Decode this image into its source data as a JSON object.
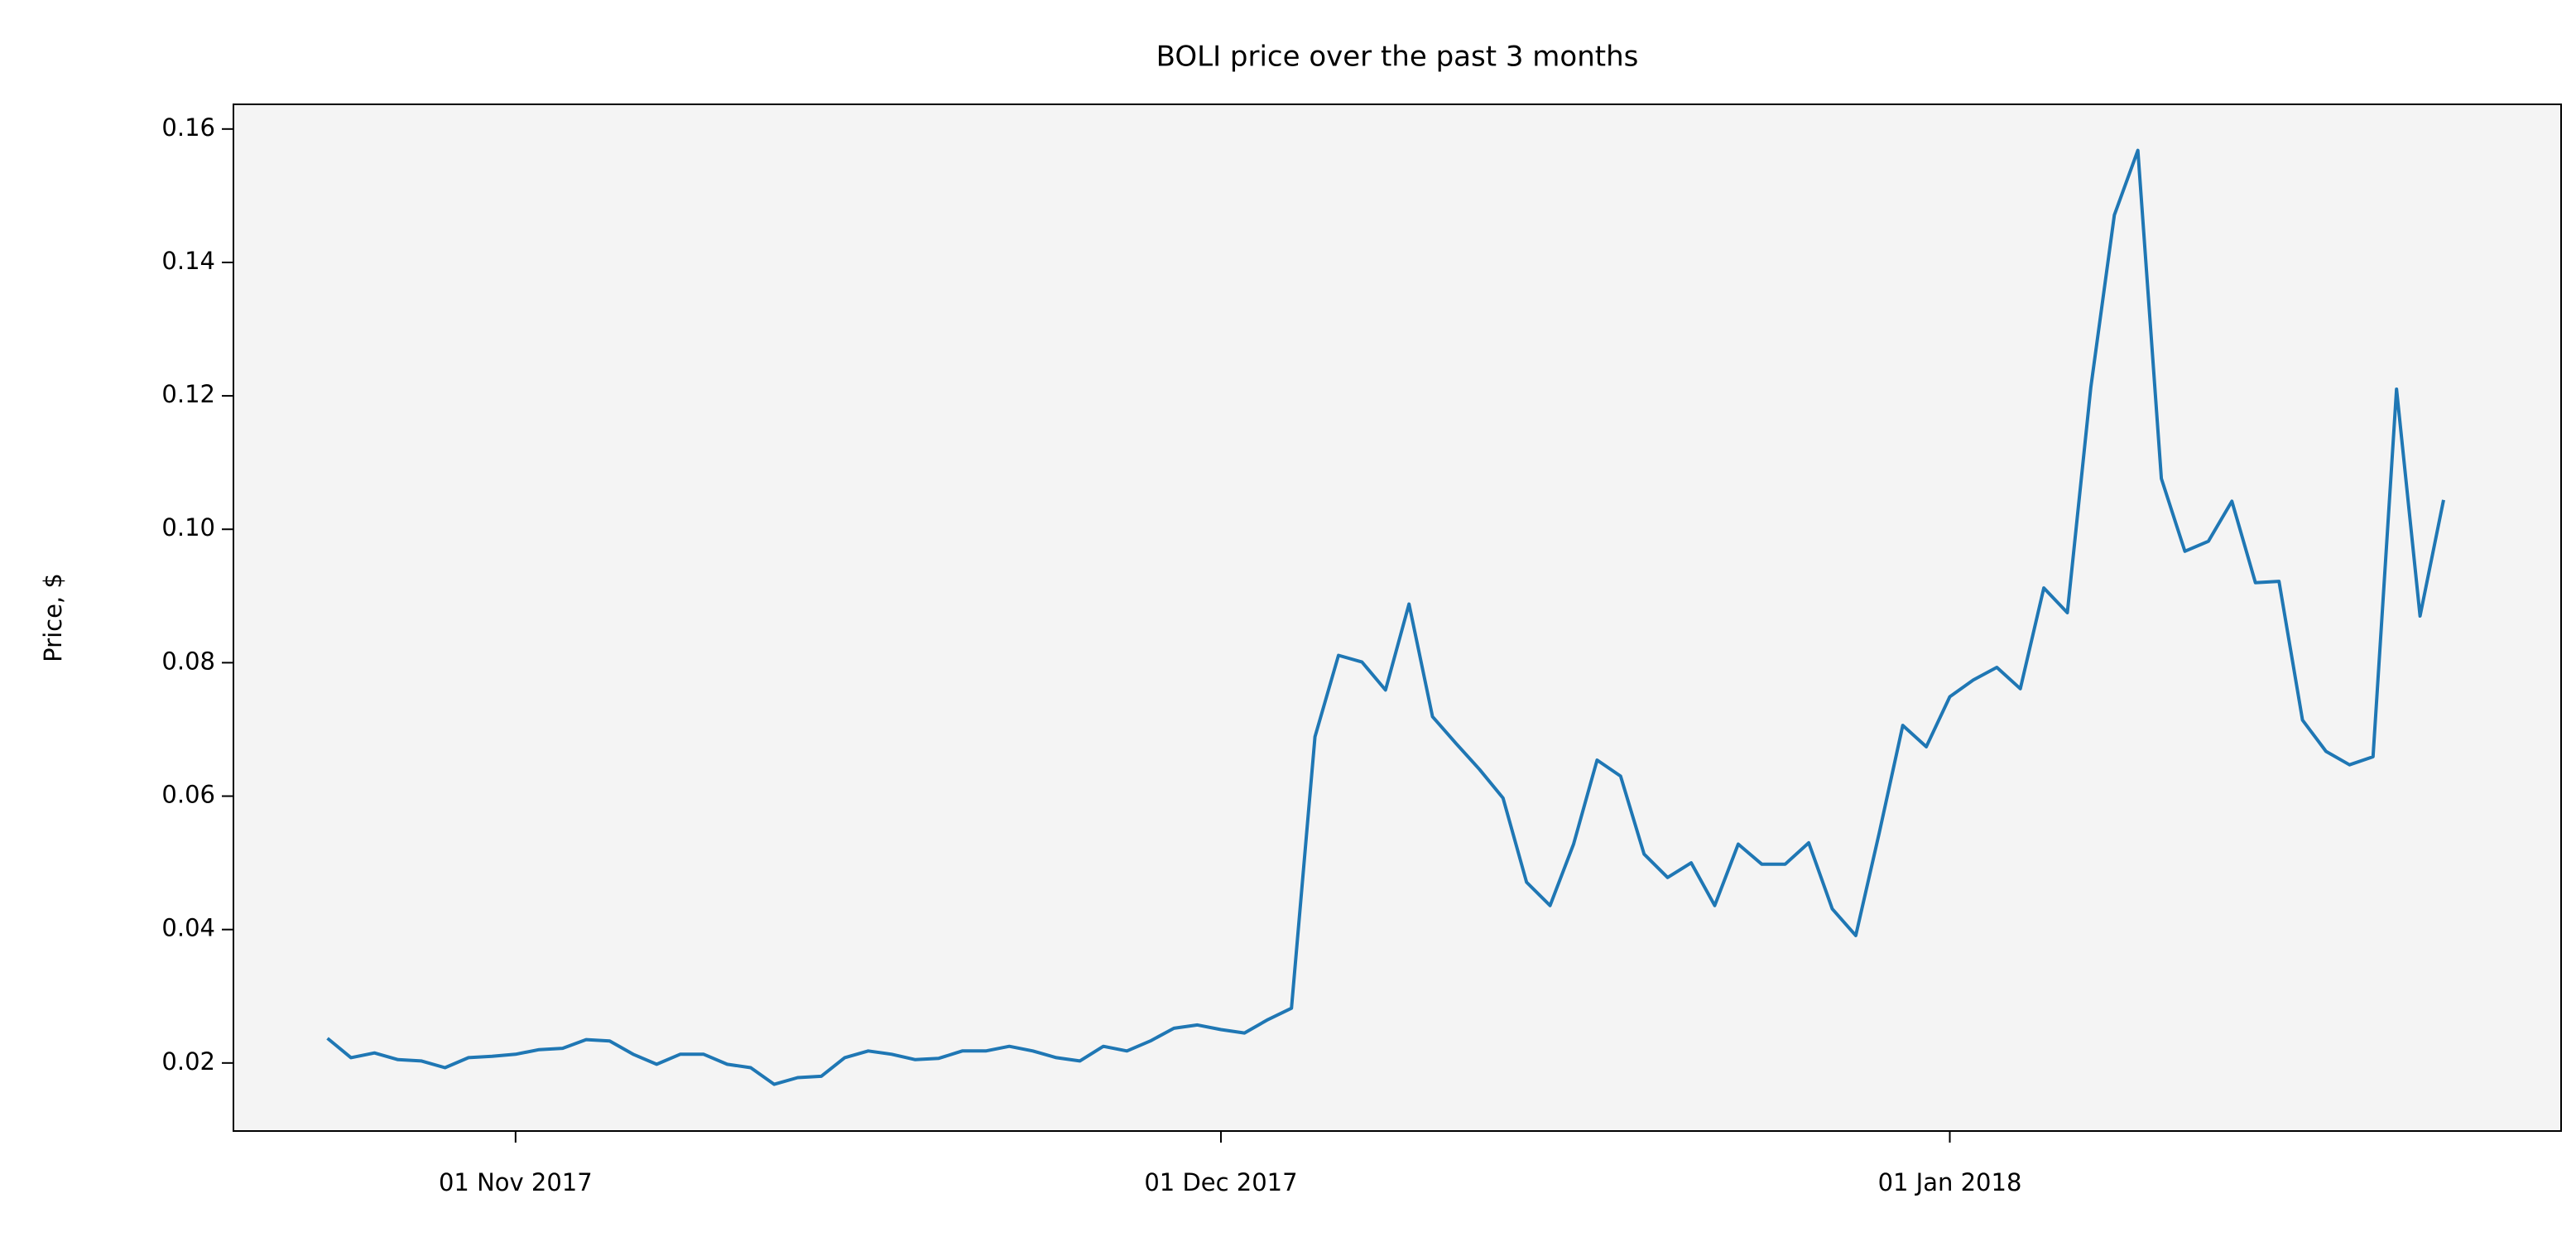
{
  "chart_data": {
    "type": "line",
    "title": "BOLI price over the past 3 months",
    "y_label": "Price, $",
    "x": [
      "2017-10-24",
      "2017-10-25",
      "2017-10-26",
      "2017-10-27",
      "2017-10-28",
      "2017-10-29",
      "2017-10-30",
      "2017-10-31",
      "2017-11-01",
      "2017-11-02",
      "2017-11-03",
      "2017-11-04",
      "2017-11-05",
      "2017-11-06",
      "2017-11-07",
      "2017-11-08",
      "2017-11-09",
      "2017-11-10",
      "2017-11-11",
      "2017-11-12",
      "2017-11-13",
      "2017-11-14",
      "2017-11-15",
      "2017-11-16",
      "2017-11-17",
      "2017-11-18",
      "2017-11-19",
      "2017-11-20",
      "2017-11-21",
      "2017-11-22",
      "2017-11-23",
      "2017-11-24",
      "2017-11-25",
      "2017-11-26",
      "2017-11-27",
      "2017-11-28",
      "2017-11-29",
      "2017-11-30",
      "2017-12-01",
      "2017-12-02",
      "2017-12-03",
      "2017-12-04",
      "2017-12-05",
      "2017-12-06",
      "2017-12-07",
      "2017-12-08",
      "2017-12-09",
      "2017-12-10",
      "2017-12-11",
      "2017-12-12",
      "2017-12-13",
      "2017-12-14",
      "2017-12-15",
      "2017-12-16",
      "2017-12-17",
      "2017-12-18",
      "2017-12-19",
      "2017-12-20",
      "2017-12-21",
      "2017-12-22",
      "2017-12-23",
      "2017-12-24",
      "2017-12-25",
      "2017-12-26",
      "2017-12-27",
      "2017-12-28",
      "2017-12-29",
      "2017-12-30",
      "2017-12-31",
      "2018-01-01",
      "2018-01-02",
      "2018-01-03",
      "2018-01-04",
      "2018-01-05",
      "2018-01-06",
      "2018-01-07",
      "2018-01-08",
      "2018-01-09",
      "2018-01-10",
      "2018-01-11",
      "2018-01-12",
      "2018-01-13",
      "2018-01-14",
      "2018-01-15",
      "2018-01-16",
      "2018-01-17",
      "2018-01-18",
      "2018-01-19",
      "2018-01-20",
      "2018-01-21",
      "2018-01-22"
    ],
    "series": [
      {
        "name": "BOLI",
        "color": "#1f77b4",
        "values": [
          0.0237,
          0.0208,
          0.0215,
          0.0205,
          0.0203,
          0.0193,
          0.0208,
          0.021,
          0.0213,
          0.022,
          0.0222,
          0.0235,
          0.0233,
          0.0213,
          0.0198,
          0.0213,
          0.0213,
          0.0198,
          0.0193,
          0.0168,
          0.0178,
          0.018,
          0.0208,
          0.0218,
          0.0213,
          0.0205,
          0.0207,
          0.0218,
          0.0218,
          0.0225,
          0.0218,
          0.0208,
          0.0203,
          0.0225,
          0.0218,
          0.0233,
          0.0252,
          0.0257,
          0.025,
          0.0245,
          0.0265,
          0.0282,
          0.0689,
          0.0811,
          0.0801,
          0.0759,
          0.0888,
          0.0719,
          0.0679,
          0.064,
          0.0597,
          0.0471,
          0.0436,
          0.0528,
          0.0654,
          0.063,
          0.0513,
          0.0478,
          0.05,
          0.0436,
          0.0528,
          0.0498,
          0.0498,
          0.053,
          0.0431,
          0.0391,
          0.0545,
          0.0706,
          0.0674,
          0.0749,
          0.0774,
          0.0793,
          0.0761,
          0.0912,
          0.0875,
          0.1213,
          0.1471,
          0.1568,
          0.1076,
          0.0967,
          0.0982,
          0.1042,
          0.092,
          0.0922,
          0.0714,
          0.0667,
          0.0647,
          0.0659,
          0.121,
          0.087,
          0.1044
        ]
      }
    ],
    "xlim": [
      "2017-10-20",
      "2018-01-27"
    ],
    "xticks": [
      {
        "value": "2017-11-01",
        "label": "01 Nov 2017"
      },
      {
        "value": "2017-12-01",
        "label": "01 Dec 2017"
      },
      {
        "value": "2018-01-01",
        "label": "01 Jan 2018"
      }
    ],
    "ylim": [
      0.0098,
      0.1637
    ],
    "yticks": [
      {
        "value": 0.02,
        "label": "0.02"
      },
      {
        "value": 0.04,
        "label": "0.04"
      },
      {
        "value": 0.06,
        "label": "0.06"
      },
      {
        "value": 0.08,
        "label": "0.08"
      },
      {
        "value": 0.1,
        "label": "0.10"
      },
      {
        "value": 0.12,
        "label": "0.12"
      },
      {
        "value": 0.14,
        "label": "0.14"
      },
      {
        "value": 0.16,
        "label": "0.16"
      }
    ],
    "grid": false,
    "background": "#f4f4f4"
  }
}
